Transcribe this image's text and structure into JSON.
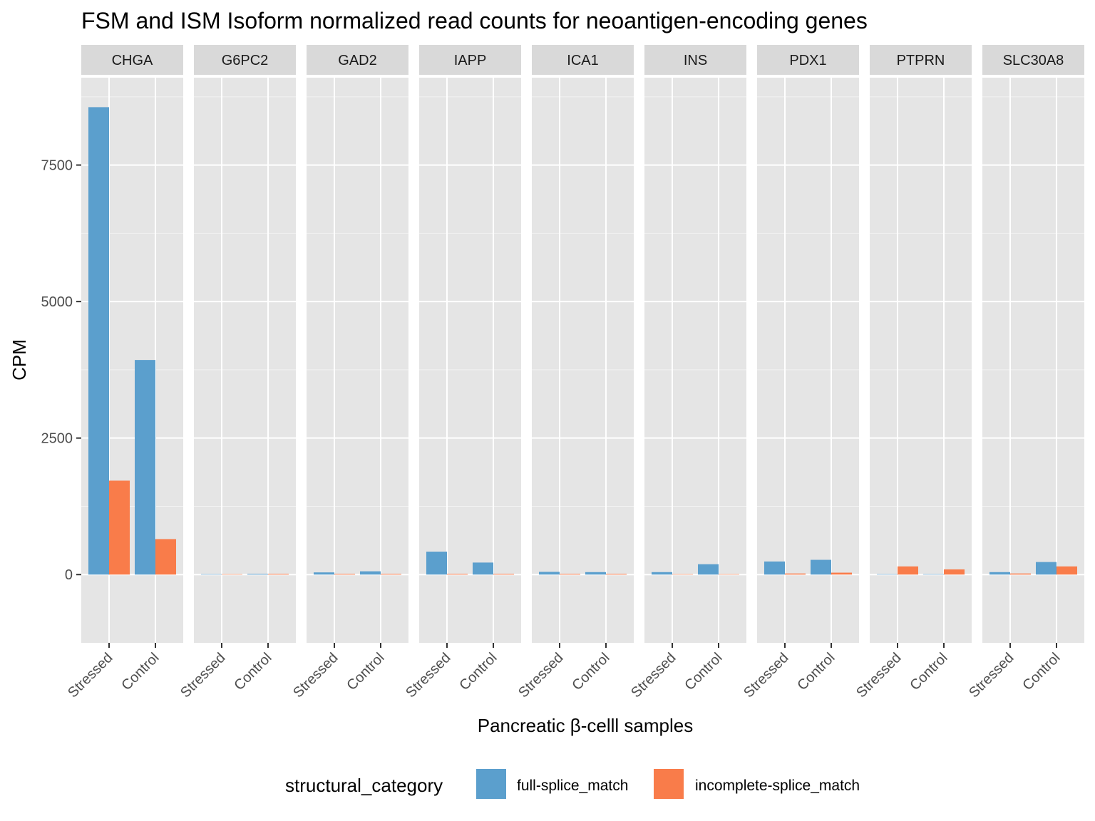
{
  "chart_data": {
    "type": "bar",
    "title": "FSM and ISM Isoform normalized read counts for neoantigen-encoding genes",
    "xlabel": "Pancreatic β-celll samples",
    "ylabel": "CPM",
    "ylim": [
      -1250,
      9100
    ],
    "yticks": [
      0,
      2500,
      5000,
      7500
    ],
    "ytick_labels": [
      "0",
      "2500",
      "5000",
      "7500"
    ],
    "grid": true,
    "legend": {
      "title": "structural_category",
      "position": "bottom"
    },
    "categories": [
      "Stressed",
      "Control"
    ],
    "series": [
      {
        "name": "full-splice_match",
        "color": "#5b9fcd"
      },
      {
        "name": "incomplete-splice_match",
        "color": "#f97c4a"
      }
    ],
    "facets": [
      {
        "label": "CHGA",
        "values": {
          "full-splice_match": [
            8560,
            3930
          ],
          "incomplete-splice_match": [
            1720,
            650
          ]
        }
      },
      {
        "label": "G6PC2",
        "values": {
          "full-splice_match": [
            0,
            5
          ],
          "incomplete-splice_match": [
            0,
            5
          ]
        }
      },
      {
        "label": "GAD2",
        "values": {
          "full-splice_match": [
            40,
            60
          ],
          "incomplete-splice_match": [
            5,
            10
          ]
        }
      },
      {
        "label": "IAPP",
        "values": {
          "full-splice_match": [
            420,
            220
          ],
          "incomplete-splice_match": [
            10,
            8
          ]
        }
      },
      {
        "label": "ICA1",
        "values": {
          "full-splice_match": [
            50,
            45
          ],
          "incomplete-splice_match": [
            10,
            10
          ]
        }
      },
      {
        "label": "INS",
        "values": {
          "full-splice_match": [
            45,
            190
          ],
          "incomplete-splice_match": [
            0,
            0
          ]
        }
      },
      {
        "label": "PDX1",
        "values": {
          "full-splice_match": [
            240,
            270
          ],
          "incomplete-splice_match": [
            20,
            35
          ]
        }
      },
      {
        "label": "PTPRN",
        "values": {
          "full-splice_match": [
            0,
            0
          ],
          "incomplete-splice_match": [
            150,
            95
          ]
        }
      },
      {
        "label": "SLC30A8",
        "values": {
          "full-splice_match": [
            45,
            230
          ],
          "incomplete-splice_match": [
            20,
            150
          ]
        }
      }
    ]
  }
}
